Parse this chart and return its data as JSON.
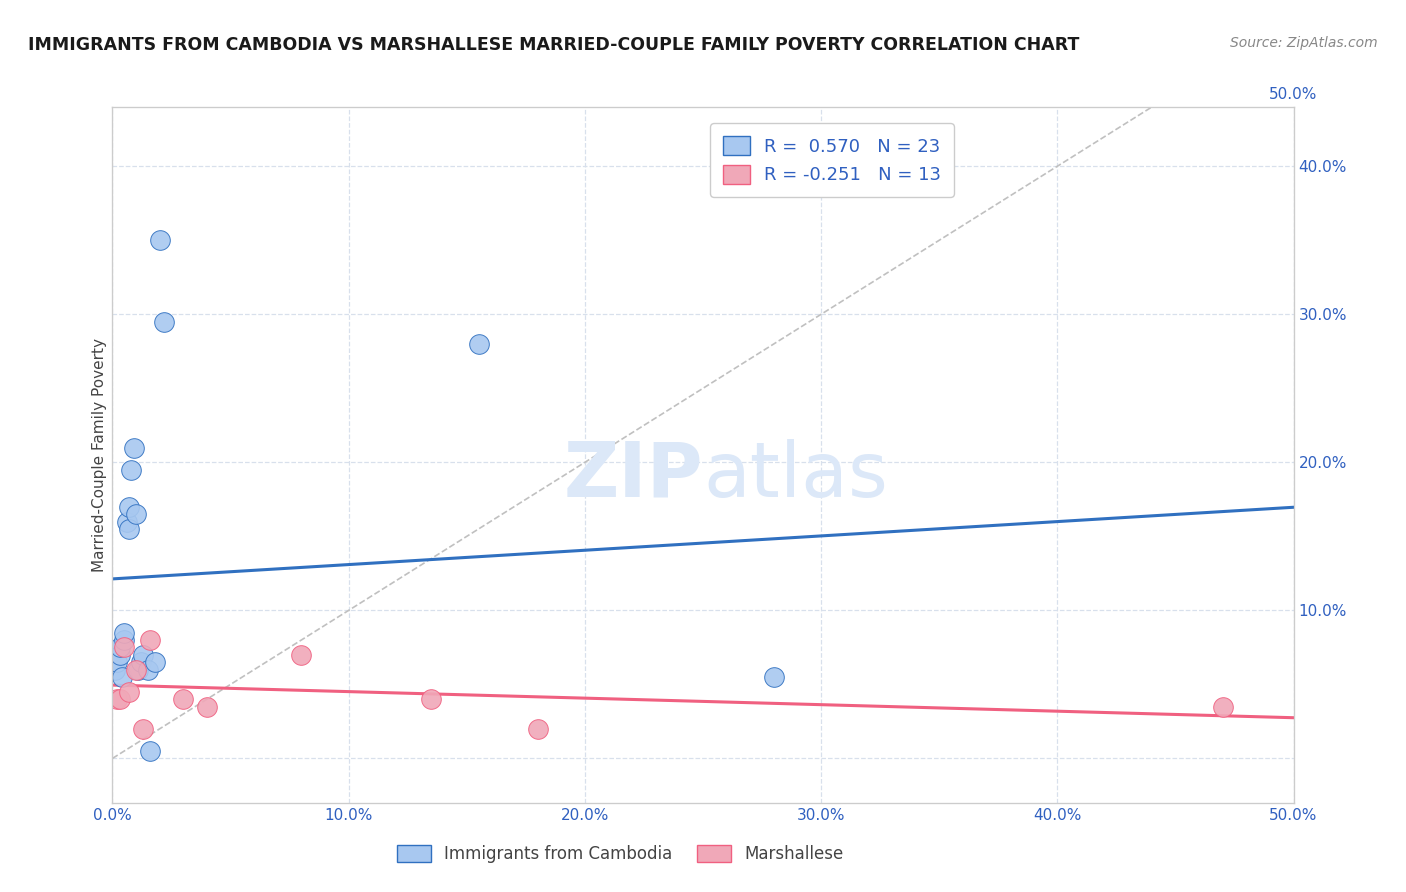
{
  "title": "IMMIGRANTS FROM CAMBODIA VS MARSHALLESE MARRIED-COUPLE FAMILY POVERTY CORRELATION CHART",
  "source": "Source: ZipAtlas.com",
  "ylabel": "Married-Couple Family Poverty",
  "xlim": [
    0.0,
    0.5
  ],
  "ylim": [
    -0.03,
    0.44
  ],
  "xticks": [
    0.0,
    0.1,
    0.2,
    0.3,
    0.4,
    0.5
  ],
  "yticks": [
    0.0,
    0.1,
    0.2,
    0.3,
    0.4
  ],
  "cambodia_x": [
    0.001,
    0.002,
    0.003,
    0.003,
    0.004,
    0.005,
    0.005,
    0.006,
    0.007,
    0.007,
    0.008,
    0.009,
    0.01,
    0.011,
    0.012,
    0.013,
    0.015,
    0.016,
    0.018,
    0.02,
    0.022,
    0.155,
    0.28
  ],
  "cambodia_y": [
    0.06,
    0.065,
    0.07,
    0.075,
    0.055,
    0.08,
    0.085,
    0.16,
    0.155,
    0.17,
    0.195,
    0.21,
    0.165,
    0.06,
    0.065,
    0.07,
    0.06,
    0.005,
    0.065,
    0.35,
    0.295,
    0.28,
    0.055
  ],
  "marshallese_x": [
    0.002,
    0.003,
    0.005,
    0.007,
    0.01,
    0.013,
    0.016,
    0.03,
    0.04,
    0.08,
    0.135,
    0.18,
    0.47
  ],
  "marshallese_y": [
    0.04,
    0.04,
    0.075,
    0.045,
    0.06,
    0.02,
    0.08,
    0.04,
    0.035,
    0.07,
    0.04,
    0.02,
    0.035
  ],
  "cambodia_color": "#a8c8f0",
  "marshallese_color": "#f0a8b8",
  "cambodia_line_color": "#3070c0",
  "marshallese_line_color": "#f06080",
  "diagonal_color": "#c0c0c0",
  "grid_color": "#d8e0ec",
  "background_color": "#ffffff",
  "watermark_color": "#dce8f8",
  "R_cambodia": 0.57,
  "N_cambodia": 23,
  "R_marshallese": -0.251,
  "N_marshallese": 13,
  "legend_labels": [
    "Immigrants from Cambodia",
    "Marshallese"
  ]
}
